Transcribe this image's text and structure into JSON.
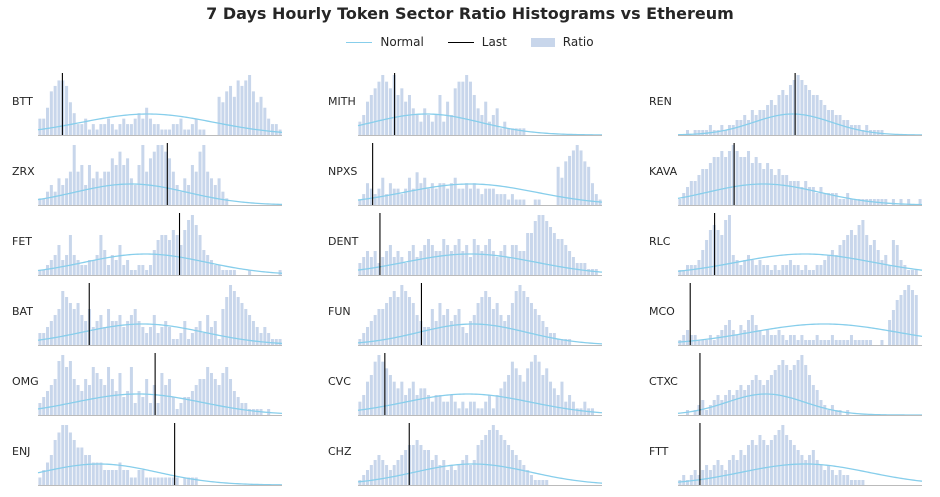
{
  "title": "7 Days Hourly Token Sector Ratio Histograms vs Ethereum",
  "legend": [
    {
      "label": "Normal",
      "kind": "line",
      "color": "#87ceeb"
    },
    {
      "label": "Last",
      "kind": "line",
      "color": "#000000"
    },
    {
      "label": "Ratio",
      "kind": "box",
      "color": "#c8d6eb"
    }
  ],
  "colors": {
    "hist": "#c8d6eb",
    "normal": "#87ceeb",
    "last": "#000000",
    "axis": "#bbbbbb",
    "text": "#262626"
  },
  "chart_data": [
    {
      "type": "bar",
      "token": "BTT",
      "last": 0.1,
      "normal": {
        "mean": 0.45,
        "sd": 0.27
      },
      "hist": [
        3,
        3,
        5,
        8,
        9,
        10,
        10,
        9,
        6,
        4,
        2,
        2,
        3,
        1,
        2,
        1,
        2,
        2,
        3,
        2,
        1,
        2,
        3,
        2,
        2,
        3,
        4,
        3,
        5,
        3,
        2,
        2,
        1,
        1,
        1,
        2,
        2,
        3,
        1,
        1,
        2,
        3,
        1,
        1,
        0,
        0,
        0,
        7,
        6,
        8,
        9,
        7,
        10,
        9,
        10,
        11,
        8,
        6,
        7,
        5,
        3,
        2,
        2,
        1
      ]
    },
    {
      "type": "bar",
      "token": "ZRX",
      "last": 0.53,
      "normal": {
        "mean": 0.38,
        "sd": 0.23
      },
      "hist": [
        1,
        1,
        2,
        3,
        2,
        4,
        3,
        4,
        5,
        9,
        5,
        6,
        3,
        6,
        4,
        5,
        4,
        5,
        5,
        7,
        6,
        8,
        6,
        7,
        4,
        3,
        6,
        9,
        5,
        7,
        8,
        9,
        9,
        8,
        7,
        5,
        3,
        2,
        4,
        3,
        6,
        5,
        8,
        9,
        5,
        4,
        3,
        4,
        2,
        1,
        0,
        0,
        0,
        0,
        0,
        0,
        0,
        0,
        0,
        0,
        0,
        0,
        0,
        0
      ]
    },
    {
      "type": "bar",
      "token": "FET",
      "last": 0.58,
      "normal": {
        "mean": 0.44,
        "sd": 0.25
      },
      "hist": [
        1,
        1,
        2,
        3,
        4,
        6,
        3,
        4,
        8,
        4,
        3,
        2,
        2,
        3,
        3,
        4,
        8,
        5,
        2,
        4,
        3,
        6,
        2,
        3,
        1,
        1,
        2,
        2,
        1,
        2,
        5,
        7,
        8,
        8,
        7,
        9,
        8,
        6,
        9,
        11,
        12,
        10,
        8,
        5,
        4,
        3,
        2,
        2,
        1,
        1,
        1,
        1,
        0,
        0,
        0,
        1,
        0,
        0,
        0,
        0,
        0,
        0,
        0,
        1
      ]
    },
    {
      "type": "bar",
      "token": "BAT",
      "last": 0.21,
      "normal": {
        "mean": 0.43,
        "sd": 0.25
      },
      "hist": [
        2,
        2,
        3,
        4,
        5,
        6,
        9,
        8,
        7,
        6,
        7,
        5,
        4,
        6,
        3,
        4,
        5,
        3,
        6,
        4,
        4,
        5,
        3,
        4,
        5,
        6,
        4,
        3,
        2,
        3,
        5,
        2,
        3,
        4,
        3,
        1,
        1,
        2,
        4,
        1,
        2,
        3,
        4,
        2,
        5,
        3,
        4,
        1,
        6,
        8,
        10,
        9,
        8,
        7,
        6,
        5,
        4,
        3,
        2,
        3,
        2,
        1,
        1,
        1
      ]
    },
    {
      "type": "bar",
      "token": "OMG",
      "last": 0.48,
      "normal": {
        "mean": 0.41,
        "sd": 0.26
      },
      "hist": [
        2,
        3,
        4,
        5,
        6,
        9,
        10,
        8,
        9,
        6,
        5,
        4,
        6,
        5,
        8,
        7,
        6,
        5,
        8,
        6,
        4,
        7,
        3,
        4,
        8,
        2,
        4,
        3,
        6,
        2,
        5,
        2,
        7,
        5,
        6,
        3,
        1,
        2,
        3,
        3,
        4,
        5,
        6,
        6,
        8,
        7,
        6,
        5,
        7,
        8,
        6,
        4,
        3,
        2,
        2,
        1,
        1,
        1,
        1,
        0,
        1,
        0,
        0,
        0
      ]
    },
    {
      "type": "bar",
      "token": "ENJ",
      "last": 0.56,
      "normal": {
        "mean": 0.25,
        "sd": 0.24
      },
      "hist": [
        1,
        2,
        3,
        4,
        6,
        7,
        8,
        8,
        7,
        6,
        5,
        5,
        4,
        4,
        3,
        3,
        3,
        2,
        2,
        2,
        2,
        3,
        2,
        2,
        1,
        1,
        2,
        2,
        1,
        1,
        1,
        1,
        1,
        1,
        1,
        1,
        1,
        0,
        1,
        1,
        1,
        1,
        0,
        0,
        0,
        0,
        0,
        0,
        0,
        0,
        0,
        0,
        0,
        0,
        0,
        0,
        0,
        0,
        0,
        0,
        0,
        0,
        0,
        0
      ]
    },
    {
      "type": "bar",
      "token": "MITH",
      "last": 0.15,
      "normal": {
        "mean": 0.28,
        "sd": 0.22
      },
      "hist": [
        2,
        3,
        5,
        6,
        7,
        8,
        9,
        8,
        7,
        9,
        6,
        7,
        5,
        6,
        4,
        3,
        2,
        4,
        3,
        2,
        3,
        6,
        2,
        5,
        3,
        7,
        8,
        8,
        9,
        8,
        6,
        4,
        3,
        5,
        2,
        3,
        4,
        1,
        2,
        1,
        1,
        1,
        1,
        1,
        0,
        0,
        0,
        0,
        0,
        0,
        0,
        0,
        0,
        0,
        0,
        0,
        0,
        0,
        0,
        0,
        0,
        0,
        0,
        0
      ]
    },
    {
      "type": "bar",
      "token": "NPXS",
      "last": 0.06,
      "normal": {
        "mean": 0.46,
        "sd": 0.27
      },
      "hist": [
        1,
        2,
        4,
        3,
        2,
        3,
        5,
        2,
        4,
        3,
        3,
        2,
        3,
        5,
        3,
        6,
        4,
        5,
        3,
        4,
        3,
        4,
        4,
        3,
        4,
        5,
        3,
        3,
        4,
        3,
        4,
        3,
        2,
        3,
        3,
        3,
        2,
        2,
        2,
        1,
        2,
        1,
        1,
        1,
        0,
        0,
        1,
        1,
        0,
        0,
        0,
        0,
        7,
        5,
        8,
        9,
        10,
        11,
        10,
        8,
        7,
        4,
        2,
        1
      ]
    },
    {
      "type": "bar",
      "token": "DENT",
      "last": 0.09,
      "normal": {
        "mean": 0.46,
        "sd": 0.27
      },
      "hist": [
        2,
        3,
        4,
        3,
        4,
        2,
        3,
        4,
        5,
        3,
        4,
        3,
        2,
        4,
        5,
        3,
        4,
        5,
        6,
        5,
        4,
        4,
        6,
        5,
        4,
        5,
        6,
        4,
        5,
        3,
        6,
        5,
        4,
        5,
        6,
        4,
        3,
        4,
        5,
        3,
        5,
        5,
        4,
        4,
        7,
        7,
        9,
        10,
        10,
        9,
        8,
        7,
        6,
        6,
        5,
        4,
        3,
        2,
        2,
        2,
        1,
        1,
        1,
        0
      ]
    },
    {
      "type": "bar",
      "token": "FUN",
      "last": 0.26,
      "normal": {
        "mean": 0.47,
        "sd": 0.22
      },
      "hist": [
        1,
        2,
        3,
        4,
        5,
        6,
        6,
        7,
        8,
        9,
        8,
        10,
        9,
        8,
        7,
        5,
        4,
        3,
        3,
        6,
        4,
        7,
        5,
        6,
        4,
        5,
        6,
        3,
        2,
        4,
        5,
        7,
        8,
        9,
        8,
        6,
        7,
        5,
        4,
        5,
        7,
        9,
        10,
        9,
        8,
        7,
        6,
        5,
        4,
        3,
        2,
        2,
        1,
        1,
        1,
        1,
        0,
        0,
        0,
        0,
        0,
        0,
        0,
        0
      ]
    },
    {
      "type": "bar",
      "token": "CVC",
      "last": 0.11,
      "normal": {
        "mean": 0.45,
        "sd": 0.26
      },
      "hist": [
        2,
        3,
        5,
        6,
        8,
        9,
        8,
        7,
        6,
        5,
        4,
        5,
        3,
        4,
        5,
        3,
        4,
        4,
        3,
        2,
        3,
        3,
        2,
        2,
        3,
        2,
        1,
        2,
        1,
        2,
        2,
        1,
        1,
        2,
        3,
        1,
        3,
        4,
        5,
        6,
        8,
        7,
        6,
        5,
        7,
        8,
        9,
        8,
        6,
        7,
        5,
        4,
        3,
        5,
        2,
        3,
        2,
        1,
        1,
        2,
        1,
        1,
        0,
        0
      ]
    },
    {
      "type": "bar",
      "token": "CHZ",
      "last": 0.21,
      "normal": {
        "mean": 0.47,
        "sd": 0.24
      },
      "hist": [
        1,
        2,
        3,
        4,
        5,
        6,
        5,
        4,
        3,
        4,
        5,
        6,
        7,
        8,
        8,
        9,
        8,
        7,
        7,
        5,
        6,
        4,
        5,
        3,
        4,
        3,
        4,
        5,
        6,
        4,
        5,
        8,
        9,
        10,
        11,
        12,
        11,
        10,
        9,
        8,
        7,
        6,
        5,
        4,
        3,
        2,
        1,
        1,
        1,
        1,
        0,
        0,
        0,
        0,
        0,
        0,
        0,
        0,
        0,
        0,
        0,
        0,
        0,
        0
      ]
    },
    {
      "type": "bar",
      "token": "REN",
      "last": 0.48,
      "normal": {
        "mean": 0.47,
        "sd": 0.16
      },
      "hist": [
        0,
        0,
        1,
        0,
        1,
        1,
        1,
        1,
        2,
        1,
        1,
        2,
        1,
        2,
        2,
        3,
        3,
        4,
        3,
        5,
        4,
        5,
        5,
        6,
        7,
        6,
        8,
        9,
        8,
        10,
        11,
        12,
        11,
        10,
        9,
        8,
        8,
        7,
        6,
        5,
        5,
        4,
        4,
        3,
        3,
        2,
        2,
        2,
        1,
        2,
        1,
        1,
        1,
        1,
        0,
        0,
        0,
        0,
        0,
        0,
        0,
        0,
        0,
        0
      ]
    },
    {
      "type": "bar",
      "token": "KAVA",
      "last": 0.23,
      "normal": {
        "mean": 0.35,
        "sd": 0.23
      },
      "hist": [
        1,
        2,
        3,
        4,
        4,
        5,
        6,
        6,
        7,
        8,
        8,
        9,
        8,
        9,
        10,
        9,
        8,
        8,
        9,
        7,
        8,
        7,
        6,
        7,
        6,
        5,
        6,
        5,
        5,
        4,
        4,
        4,
        3,
        4,
        3,
        3,
        2,
        3,
        2,
        2,
        2,
        2,
        1,
        1,
        2,
        1,
        1,
        1,
        1,
        1,
        1,
        1,
        1,
        1,
        1,
        0,
        1,
        0,
        1,
        0,
        1,
        0,
        0,
        1
      ]
    },
    {
      "type": "bar",
      "token": "RLC",
      "last": 0.15,
      "normal": {
        "mean": 0.52,
        "sd": 0.28
      },
      "hist": [
        1,
        1,
        2,
        2,
        2,
        3,
        5,
        7,
        9,
        10,
        9,
        8,
        11,
        12,
        4,
        3,
        2,
        3,
        4,
        3,
        2,
        3,
        2,
        2,
        1,
        2,
        1,
        2,
        2,
        3,
        2,
        2,
        1,
        2,
        1,
        1,
        2,
        2,
        3,
        4,
        5,
        4,
        6,
        7,
        8,
        9,
        8,
        10,
        11,
        8,
        6,
        7,
        5,
        3,
        4,
        2,
        7,
        6,
        3,
        2,
        1,
        1,
        1,
        0
      ]
    },
    {
      "type": "bar",
      "token": "MCO",
      "last": 0.05,
      "normal": {
        "mean": 0.6,
        "sd": 0.3
      },
      "hist": [
        1,
        2,
        3,
        2,
        2,
        1,
        1,
        1,
        2,
        1,
        2,
        3,
        4,
        5,
        3,
        2,
        4,
        3,
        5,
        6,
        4,
        3,
        2,
        3,
        2,
        2,
        3,
        2,
        1,
        2,
        2,
        1,
        2,
        1,
        1,
        1,
        2,
        1,
        1,
        1,
        2,
        1,
        1,
        1,
        1,
        2,
        1,
        1,
        1,
        1,
        1,
        0,
        0,
        1,
        0,
        5,
        7,
        9,
        10,
        11,
        12,
        11,
        10,
        0
      ]
    },
    {
      "type": "bar",
      "token": "CTXC",
      "last": 0.09,
      "normal": {
        "mean": 0.36,
        "sd": 0.16
      },
      "hist": [
        0,
        0,
        1,
        0,
        1,
        2,
        3,
        1,
        2,
        3,
        4,
        3,
        4,
        5,
        4,
        5,
        6,
        5,
        6,
        7,
        8,
        7,
        6,
        7,
        8,
        9,
        10,
        11,
        10,
        9,
        10,
        11,
        12,
        10,
        8,
        6,
        5,
        3,
        2,
        1,
        2,
        1,
        1,
        0,
        1,
        0,
        0,
        0,
        0,
        0,
        0,
        0,
        0,
        0,
        0,
        0,
        0,
        0,
        0,
        0,
        0,
        0,
        0,
        0
      ]
    },
    {
      "type": "bar",
      "token": "FTT",
      "last": 0.09,
      "normal": {
        "mean": 0.52,
        "sd": 0.26
      },
      "hist": [
        1,
        2,
        1,
        2,
        3,
        2,
        3,
        4,
        3,
        4,
        5,
        4,
        3,
        5,
        6,
        5,
        7,
        6,
        8,
        9,
        8,
        10,
        9,
        8,
        9,
        10,
        11,
        12,
        10,
        9,
        8,
        7,
        6,
        5,
        6,
        7,
        5,
        4,
        3,
        4,
        3,
        2,
        3,
        2,
        2,
        1,
        1,
        1,
        1,
        0,
        0,
        0,
        0,
        0,
        0,
        0,
        0,
        0,
        0,
        0,
        0,
        0,
        0,
        0
      ]
    }
  ]
}
